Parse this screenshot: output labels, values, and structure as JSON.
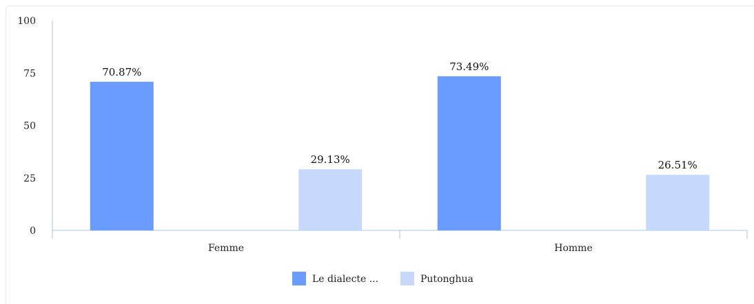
{
  "chart_data": {
    "type": "bar",
    "categories": [
      "Femme",
      "Homme"
    ],
    "series": [
      {
        "name": "Le dialecte ...",
        "values": [
          70.87,
          73.49
        ],
        "color": "#6a9cff"
      },
      {
        "name": "Putonghua",
        "values": [
          29.13,
          26.51
        ],
        "color": "#c6d8fb"
      }
    ],
    "data_labels": [
      [
        "70.87%",
        "73.49%"
      ],
      [
        "29.13%",
        "26.51%"
      ]
    ],
    "yticks": [
      "0",
      "25",
      "50",
      "75",
      "100"
    ],
    "ylim": [
      0,
      100
    ],
    "title": "",
    "xlabel": "",
    "ylabel": "",
    "legend_position": "bottom",
    "grid": false,
    "axis_color": "#a9c4e0"
  }
}
